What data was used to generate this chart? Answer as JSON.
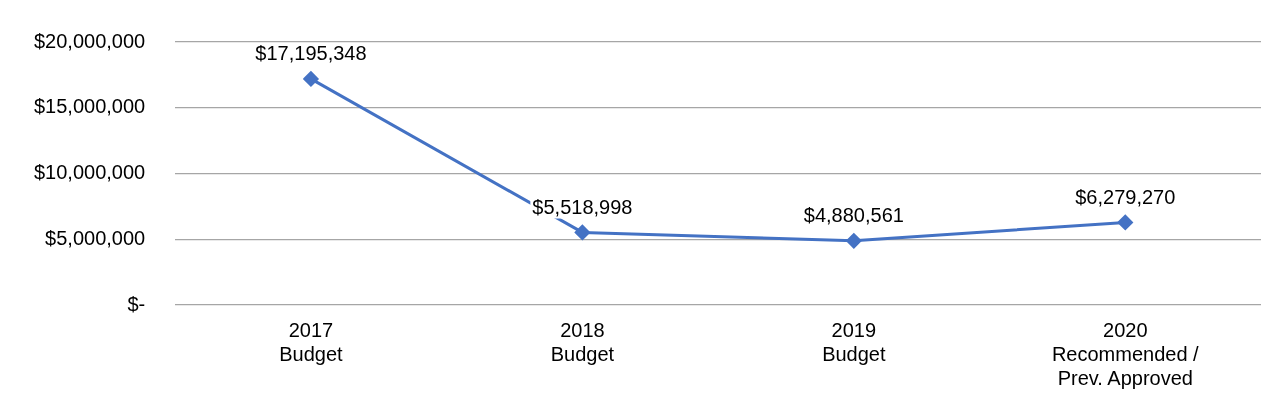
{
  "chart_data": {
    "type": "line",
    "categories": [
      "2017 Budget",
      "2018 Budget",
      "2019 Budget",
      "2020 Recommended / Prev. Approved"
    ],
    "series": [
      {
        "color": "#4472c4",
        "values": [
          17195348,
          5518998,
          4880561,
          6279270
        ],
        "value_labels": [
          "$17,195,348",
          "$5,518,998",
          "$4,880,561",
          "$6,279,270"
        ]
      }
    ],
    "ylim": [
      0,
      20000000
    ],
    "yticks": [
      {
        "value": 0,
        "label": "$-"
      },
      {
        "value": 5000000,
        "label": "$5,000,000"
      },
      {
        "value": 10000000,
        "label": "$10,000,000"
      },
      {
        "value": 15000000,
        "label": "$15,000,000"
      },
      {
        "value": 20000000,
        "label": "$20,000,000"
      }
    ],
    "grid": "y",
    "legend": false,
    "marker": "diamond",
    "line_style": "solid"
  }
}
